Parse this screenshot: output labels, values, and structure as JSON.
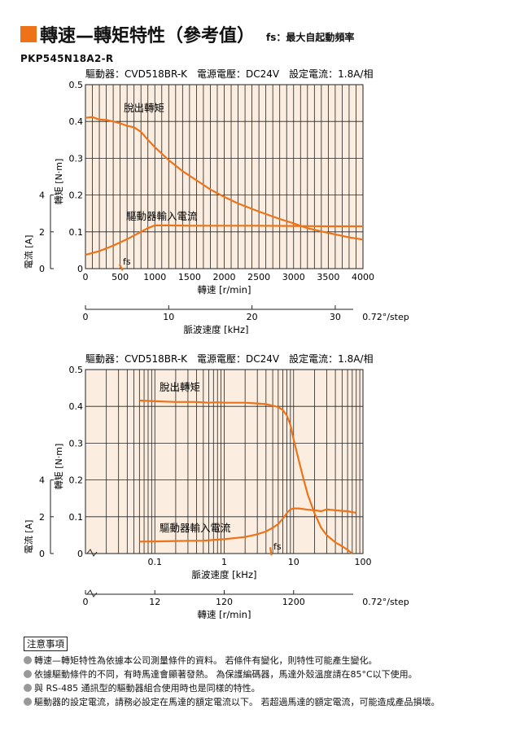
{
  "header": {
    "title": "轉速—轉矩特性（參考值）",
    "note": "fs：最大自起動頻率",
    "model": "PKP545N18A2-R"
  },
  "colors": {
    "accent": "#ee7318",
    "plot_bg": "#fbeee0",
    "curve": "#ee7318",
    "grid": "#222222"
  },
  "chart_data": [
    {
      "type": "line",
      "header": "驅動器：CVD518BR-K　電源電壓：DC24V　設定電流：1.8A/相",
      "xlabel": "轉速 [r/min]",
      "ylabel": "轉矩 [N·m]",
      "y2label": "電流 [A]",
      "xlim": [
        0,
        4000
      ],
      "ylim": [
        0,
        0.5
      ],
      "xticks": [
        0,
        500,
        1000,
        1500,
        2000,
        2500,
        3000,
        3500,
        4000
      ],
      "yticks": [
        0,
        0.1,
        0.2,
        0.3,
        0.4,
        0.5
      ],
      "y2ticks": [
        0,
        2,
        4
      ],
      "secondary_axis": {
        "label": "脈波速度 [kHz]",
        "ticks": [
          0,
          10,
          20,
          30
        ],
        "suffix": "0.72°/step"
      },
      "annotations": [
        "脫出轉矩",
        "驅動器輸入電流",
        "fs"
      ],
      "series": [
        {
          "name": "脫出轉矩",
          "x": [
            0,
            100,
            200,
            300,
            400,
            500,
            600,
            700,
            800,
            900,
            1000,
            1200,
            1400,
            1600,
            1800,
            2000,
            2200,
            2500,
            2800,
            3000,
            3200,
            3500,
            3800,
            4000
          ],
          "y": [
            0.41,
            0.412,
            0.405,
            0.404,
            0.4,
            0.395,
            0.388,
            0.384,
            0.372,
            0.35,
            0.33,
            0.295,
            0.265,
            0.24,
            0.215,
            0.195,
            0.177,
            0.155,
            0.135,
            0.123,
            0.11,
            0.097,
            0.085,
            0.079
          ]
        },
        {
          "name": "驅動器輸入電流",
          "x": [
            0,
            200,
            400,
            600,
            800,
            900,
            1000,
            1200,
            1500,
            2000,
            2500,
            3000,
            3500,
            4000
          ],
          "y": [
            0.75,
            0.95,
            1.25,
            1.6,
            2.0,
            2.2,
            2.35,
            2.35,
            2.33,
            2.33,
            2.33,
            2.32,
            2.3,
            2.3
          ]
        },
        {
          "name": "fs",
          "x": [
            490,
            535
          ],
          "y": [
            0.012,
            -0.005
          ]
        }
      ]
    },
    {
      "type": "line",
      "header": "驅動器：CVD518BR-K　電源電壓：DC24V　設定電流：1.8A/相",
      "xlabel": "脈波速度 [kHz]",
      "ylabel": "轉矩 [N·m]",
      "y2label": "電流 [A]",
      "xscale": "log",
      "xlim": [
        0.01,
        100
      ],
      "ylim": [
        0,
        0.5
      ],
      "xticks": [
        0.1,
        1,
        10,
        100
      ],
      "yticks": [
        0,
        0.1,
        0.2,
        0.3,
        0.4,
        0.5
      ],
      "y2ticks": [
        0,
        2,
        4
      ],
      "secondary_axis": {
        "label": "轉速 [r/min]",
        "ticks": [
          0,
          12,
          120,
          1200
        ],
        "suffix": "0.72°/step"
      },
      "annotations": [
        "脫出轉矩",
        "驅動器輸入電流",
        "fs"
      ],
      "series": [
        {
          "name": "脫出轉矩",
          "x": [
            0.06,
            0.1,
            0.2,
            0.4,
            0.6,
            0.8,
            1.0,
            1.5,
            2,
            3,
            4,
            5,
            6,
            7,
            8,
            9,
            10,
            12,
            14,
            16,
            20,
            25,
            30,
            40,
            50,
            60,
            70
          ],
          "y": [
            0.416,
            0.414,
            0.412,
            0.412,
            0.41,
            0.411,
            0.41,
            0.41,
            0.41,
            0.408,
            0.406,
            0.402,
            0.398,
            0.39,
            0.375,
            0.35,
            0.31,
            0.25,
            0.2,
            0.16,
            0.11,
            0.07,
            0.05,
            0.03,
            0.02,
            0.01,
            0.0
          ]
        },
        {
          "name": "驅動器輸入電流",
          "x": [
            0.06,
            0.1,
            0.2,
            0.5,
            1,
            2,
            3,
            4,
            5,
            6,
            7,
            8,
            9,
            10,
            12,
            15,
            20,
            25,
            30,
            40,
            50,
            60,
            70,
            80
          ],
          "y": [
            0.65,
            0.66,
            0.68,
            0.7,
            0.78,
            0.9,
            1.05,
            1.2,
            1.4,
            1.6,
            1.9,
            2.2,
            2.4,
            2.45,
            2.45,
            2.4,
            2.35,
            2.3,
            2.4,
            2.35,
            2.32,
            2.3,
            2.25,
            2.22
          ]
        },
        {
          "name": "fs",
          "x": [
            4.6,
            4.8
          ],
          "y": [
            0.017,
            -0.005
          ]
        }
      ]
    }
  ],
  "notes": {
    "header": "注意事項",
    "items": [
      "轉速—轉矩特性為依據本公司測量條件的資料。 若條件有變化，則特性可能產生變化。",
      "依據驅動條件的不同，有時馬達會顯著發熱。 為保護編碼器，馬達外殼溫度請在85°C以下使用。",
      "與 RS-485 通訊型的驅動器組合使用時也是同樣的特性。",
      "驅動器的設定電流，請務必設定在馬達的額定電流以下。 若超過馬達的額定電流，可能造成產品損壞。"
    ]
  }
}
